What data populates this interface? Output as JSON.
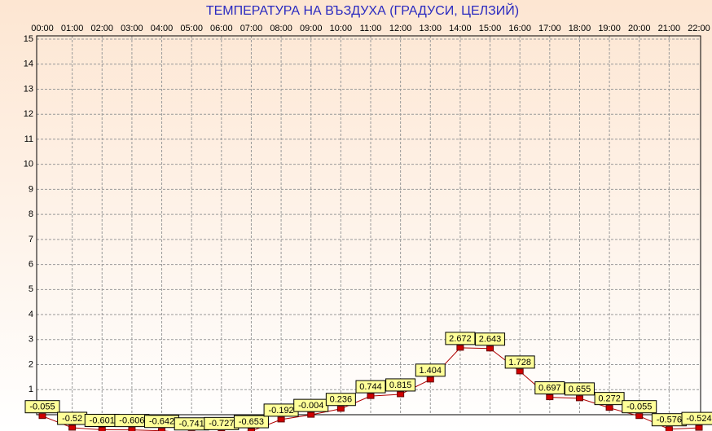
{
  "chart_data": {
    "type": "line",
    "title": "ТЕМПЕРАТУРА НА ВЪЗДУХА  (ГРАДУСИ, ЦЕЛЗИЙ)",
    "categories": [
      "00:00",
      "01:00",
      "02:00",
      "03:00",
      "04:00",
      "05:00",
      "06:00",
      "07:00",
      "08:00",
      "09:00",
      "10:00",
      "11:00",
      "12:00",
      "13:00",
      "14:00",
      "15:00",
      "16:00",
      "17:00",
      "18:00",
      "19:00",
      "20:00",
      "21:00",
      "22:00"
    ],
    "values": [
      -0.055,
      -0.52,
      -0.601,
      -0.606,
      -0.642,
      -0.741,
      -0.727,
      -0.653,
      -0.192,
      -0.004,
      0.236,
      0.744,
      0.815,
      1.404,
      2.672,
      2.643,
      1.728,
      0.697,
      0.655,
      0.272,
      -0.055,
      -0.576,
      -0.524
    ],
    "color": "#b00000",
    "ylim": [
      0,
      15
    ],
    "yticks": [
      1,
      2,
      3,
      4,
      5,
      6,
      7,
      8,
      9,
      10,
      11,
      12,
      13,
      14,
      15
    ],
    "grid": true
  }
}
